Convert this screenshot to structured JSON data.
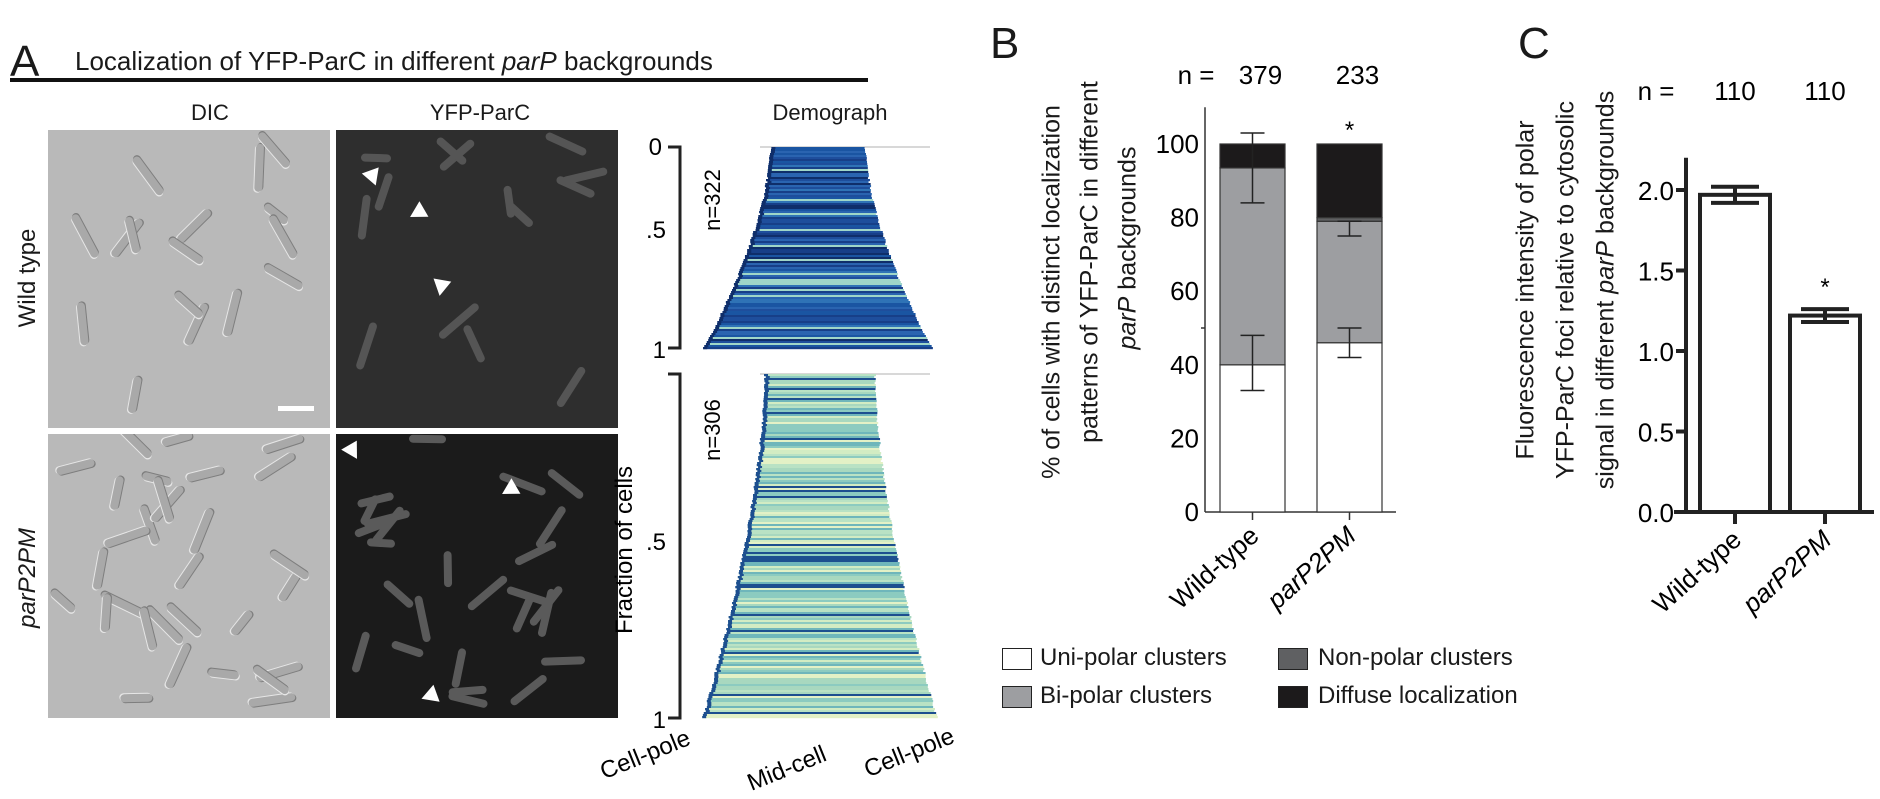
{
  "panel_a": {
    "letter": "A",
    "title_pre": "Localization of YFP-ParC in different ",
    "title_italic": "parP",
    "title_post": " backgrounds",
    "column_headers": [
      "DIC",
      "YFP-ParC",
      "Demograph"
    ],
    "row_labels": [
      "Wild type",
      "parP2PM"
    ],
    "demograph": {
      "ylabel": "Fraction of cells",
      "top_ticks": [
        "0",
        ".5",
        "1"
      ],
      "bottom_ticks": [
        ".5",
        "1"
      ],
      "top_n": "n=322",
      "bottom_n": "n=306",
      "xlabels": [
        "Cell-pole",
        "Mid-cell",
        "Cell-pole"
      ],
      "colors": {
        "wild_type": "#1f4f9a",
        "parP2PM": "#a9d8c0"
      }
    }
  },
  "chart_data": [
    {
      "panel": "B",
      "type": "bar",
      "stacked": true,
      "categories": [
        "Wild-type",
        "parP2PM"
      ],
      "n_prefix": "n =",
      "n_values": [
        "379",
        "233"
      ],
      "significance": [
        "",
        "*"
      ],
      "ylabel_lines": [
        "% of cells with distinct localization",
        "patterns of YFP-ParC in different"
      ],
      "ylabel_line3_italic": "parP",
      "ylabel_line3_rest": " backgrounds",
      "ylim": [
        0,
        100
      ],
      "yticks": [
        "0",
        "20",
        "40",
        "60",
        "80",
        "100"
      ],
      "series": [
        {
          "name": "Uni-polar clusters",
          "color": "#ffffff",
          "values": [
            40,
            46
          ],
          "error_low": [
            33,
            42
          ],
          "error_high": [
            48,
            50
          ]
        },
        {
          "name": "Bi-polar clusters",
          "color": "#9d9ea1",
          "values": [
            53.5,
            33
          ],
          "error_low": [
            84,
            75
          ],
          "error_high": [
            103,
            79
          ]
        },
        {
          "name": "Non-polar clusters",
          "color": "#5f6062",
          "values": [
            0,
            1
          ]
        },
        {
          "name": "Diffuse localization",
          "color": "#1c1a1b",
          "values": [
            6.5,
            20
          ]
        }
      ],
      "legend_placement": "bottom"
    },
    {
      "panel": "C",
      "type": "bar",
      "categories": [
        "Wild-type",
        "parP2PM"
      ],
      "n_prefix": "n =",
      "n_values": [
        "110",
        "110"
      ],
      "significance": [
        "",
        "*"
      ],
      "ylabel_lines": [
        "Fluorescence intensity of  polar",
        "YFP-ParC foci relative to cytosolic"
      ],
      "ylabel_line3_pre": "signal in different ",
      "ylabel_line3_italic": "parP",
      "ylabel_line3_rest": " backgrounds",
      "ylim": [
        0,
        2.2
      ],
      "yticks": [
        "0.0",
        "0.5",
        "1.0",
        "1.5",
        "2.0"
      ],
      "values": [
        1.97,
        1.22
      ],
      "errors": [
        0.05,
        0.04
      ],
      "bar_color": "#ffffff"
    }
  ]
}
